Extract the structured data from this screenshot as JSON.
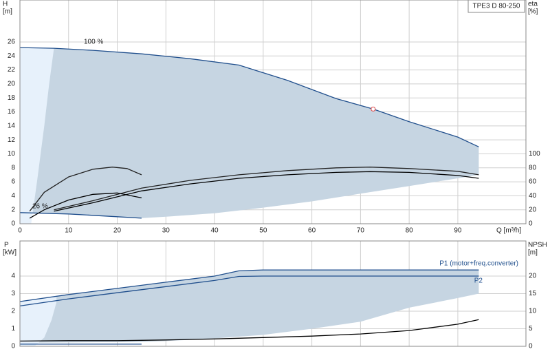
{
  "chart_data": [
    {
      "type": "line",
      "ylabel": "H",
      "yunit": "[m]",
      "y2label": "eta",
      "y2unit": "[%]",
      "xlabel": "Q [m³/h]",
      "badge": "TPE3 D 80-250",
      "annotations": [
        "100 %",
        "26 %"
      ],
      "xlim": [
        0,
        104
      ],
      "ylim": [
        0,
        32
      ],
      "y2lim": [
        0,
        320
      ],
      "grid": true,
      "xticks": [
        0,
        10,
        20,
        30,
        40,
        50,
        60,
        70,
        80,
        90
      ],
      "yticks": [
        0,
        2,
        4,
        6,
        8,
        10,
        12,
        14,
        16,
        18,
        20,
        22,
        24,
        26
      ],
      "y2ticks": [
        0,
        20,
        40,
        60,
        80,
        100
      ],
      "series": [
        {
          "shape": "area",
          "color": "#c6d5e2",
          "x": [
            0,
            7,
            15,
            25,
            35,
            45,
            55,
            65,
            72.6,
            80,
            90,
            94.3,
            94.3,
            90,
            80,
            70,
            60,
            50,
            40,
            30,
            25,
            20,
            15,
            10,
            5,
            0
          ],
          "values": [
            25.2,
            25.1,
            24.8,
            24.3,
            23.6,
            22.7,
            20.5,
            17.9,
            16.4,
            14.6,
            12.4,
            11.0,
            7.0,
            6.5,
            5.4,
            4.3,
            3.2,
            2.3,
            1.5,
            1.0,
            0.8,
            1.0,
            1.2,
            1.4,
            1.5,
            1.6
          ]
        },
        {
          "shape": "area",
          "color": "#e7f1fb",
          "x": [
            0,
            2.3,
            3.5,
            5,
            6,
            7,
            0
          ],
          "values": [
            0,
            0,
            6,
            14,
            20,
            25.1,
            25.2
          ]
        },
        {
          "shape": "line",
          "color": "#1f4e8c",
          "x": [
            0,
            7,
            15,
            25,
            35,
            45,
            55,
            65,
            72.6,
            80,
            90,
            94.3
          ],
          "values": [
            25.2,
            25.1,
            24.8,
            24.3,
            23.6,
            22.7,
            20.5,
            17.9,
            16.4,
            14.6,
            12.4,
            11.0
          ]
        },
        {
          "shape": "line",
          "color": "#1f4e8c",
          "x": [
            0,
            5,
            10,
            15,
            20,
            25
          ],
          "values": [
            1.6,
            1.5,
            1.4,
            1.2,
            1.0,
            0.8
          ]
        },
        {
          "shape": "line",
          "color": "#222222",
          "axis": "y2",
          "x": [
            7,
            15,
            25,
            35,
            45,
            55,
            65,
            72,
            80,
            90,
            94.3
          ],
          "values": [
            20,
            33,
            51,
            62,
            70,
            76,
            80,
            81,
            79,
            75,
            70
          ]
        },
        {
          "shape": "line",
          "color": "#000000",
          "axis": "y2",
          "x": [
            7,
            15,
            25,
            35,
            45,
            55,
            65,
            72,
            80,
            90,
            94.3
          ],
          "values": [
            18,
            30,
            47,
            57,
            65,
            70,
            73.5,
            74.5,
            73.5,
            69,
            65
          ]
        },
        {
          "shape": "line",
          "color": "#222222",
          "axis": "y2",
          "x": [
            2,
            5,
            10,
            15,
            19,
            22,
            25
          ],
          "values": [
            18,
            45,
            67,
            78,
            81,
            79,
            70
          ]
        },
        {
          "shape": "line",
          "color": "#000000",
          "axis": "y2",
          "x": [
            2,
            5,
            10,
            15,
            20,
            25
          ],
          "values": [
            8,
            20,
            34,
            42,
            44,
            37
          ]
        },
        {
          "shape": "marker",
          "color": "#e06060",
          "x": [
            72.6
          ],
          "values": [
            16.4
          ]
        }
      ]
    },
    {
      "type": "line",
      "ylabel": "P",
      "yunit": "[kW]",
      "y2label": "NPSH",
      "y2unit": "[m]",
      "annotations": [
        "P1 (motor+freq.converter)",
        "P2"
      ],
      "xlim": [
        0,
        104
      ],
      "ylim": [
        0,
        6
      ],
      "y2lim": [
        0,
        30
      ],
      "grid": true,
      "xticks": [
        0,
        10,
        20,
        30,
        40,
        50,
        60,
        70,
        80,
        90
      ],
      "yticks": [
        0,
        1,
        2,
        3,
        4
      ],
      "y2ticks": [
        0,
        5,
        10,
        15,
        20
      ],
      "series": [
        {
          "shape": "area",
          "color": "#c6d5e2",
          "x": [
            0,
            10,
            20,
            30,
            40,
            45,
            50,
            60,
            70,
            80,
            90,
            94.3,
            94.3,
            90,
            80,
            70,
            60,
            50,
            40,
            30,
            25,
            0
          ],
          "values": [
            2.55,
            2.95,
            3.3,
            3.65,
            4.0,
            4.3,
            4.35,
            4.35,
            4.35,
            4.35,
            4.35,
            4.35,
            3.0,
            2.75,
            2.2,
            1.4,
            1.0,
            0.65,
            0.45,
            0.3,
            0.25,
            0.2
          ]
        },
        {
          "shape": "area",
          "color": "#e7f1fb",
          "x": [
            0,
            3,
            5,
            6.5,
            7.5,
            7.5,
            0
          ],
          "values": [
            0,
            0,
            0.5,
            1.5,
            2.5,
            2.85,
            2.55
          ]
        },
        {
          "shape": "line",
          "color": "#1f4e8c",
          "x": [
            0,
            10,
            20,
            30,
            40,
            45,
            50,
            60,
            70,
            80,
            90,
            94.3
          ],
          "values": [
            2.55,
            2.95,
            3.3,
            3.65,
            4.0,
            4.3,
            4.35,
            4.35,
            4.35,
            4.35,
            4.35,
            4.35
          ]
        },
        {
          "shape": "line",
          "color": "#1f4e8c",
          "x": [
            0,
            10,
            20,
            30,
            40,
            45,
            50,
            60,
            70,
            80,
            90,
            94.3
          ],
          "values": [
            2.3,
            2.7,
            3.05,
            3.4,
            3.75,
            3.98,
            4.0,
            4.0,
            4.0,
            4.0,
            4.0,
            4.0
          ]
        },
        {
          "shape": "line",
          "color": "#000000",
          "axis": "y2",
          "x": [
            0,
            10,
            20,
            30,
            40,
            50,
            60,
            70,
            80,
            90,
            94.3
          ],
          "values": [
            1.5,
            1.6,
            1.6,
            1.8,
            2.1,
            2.5,
            2.9,
            3.5,
            4.5,
            6.3,
            7.6
          ]
        },
        {
          "shape": "line",
          "color": "#1f4e8c",
          "x": [
            0,
            25
          ],
          "values": [
            0.12,
            0.12
          ]
        }
      ]
    }
  ]
}
